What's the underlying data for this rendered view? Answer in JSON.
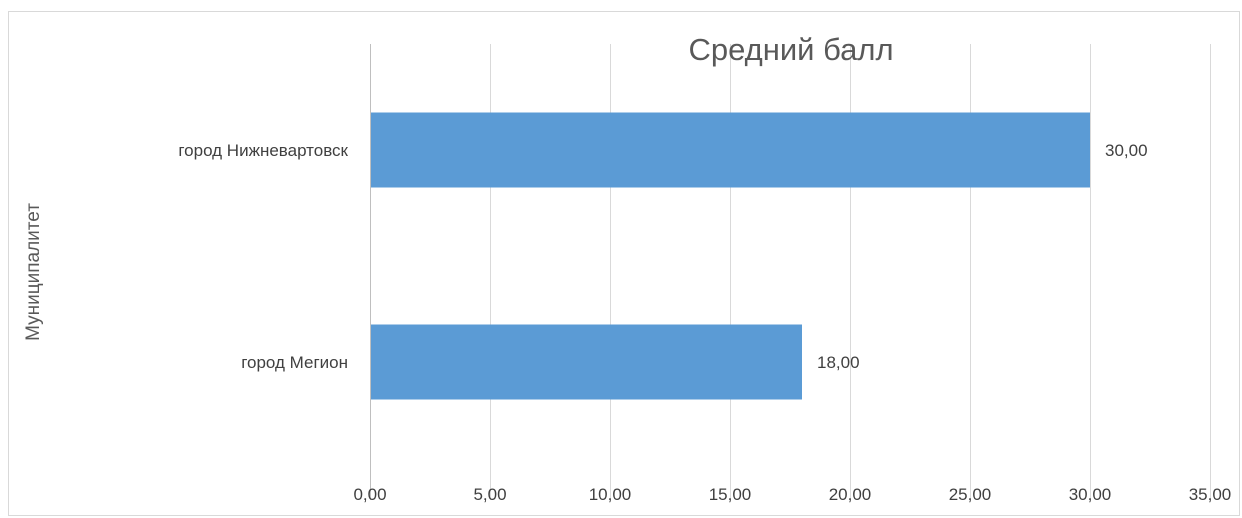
{
  "chart_data": {
    "type": "bar",
    "orientation": "horizontal",
    "title": "Средний балл",
    "ylabel": "Муниципалитет",
    "xlabel": "",
    "categories": [
      "город Нижневартовск",
      "город Мегион"
    ],
    "values": [
      30.0,
      18.0
    ],
    "value_labels": [
      "30,00",
      "18,00"
    ],
    "xlim": [
      0,
      35
    ],
    "x_ticks": [
      0,
      5,
      10,
      15,
      20,
      25,
      30,
      35
    ],
    "x_tick_labels": [
      "0,00",
      "5,00",
      "10,00",
      "15,00",
      "20,00",
      "25,00",
      "30,00",
      "35,00"
    ],
    "grid": true,
    "legend": "none",
    "bar_color": "#5b9bd5"
  }
}
